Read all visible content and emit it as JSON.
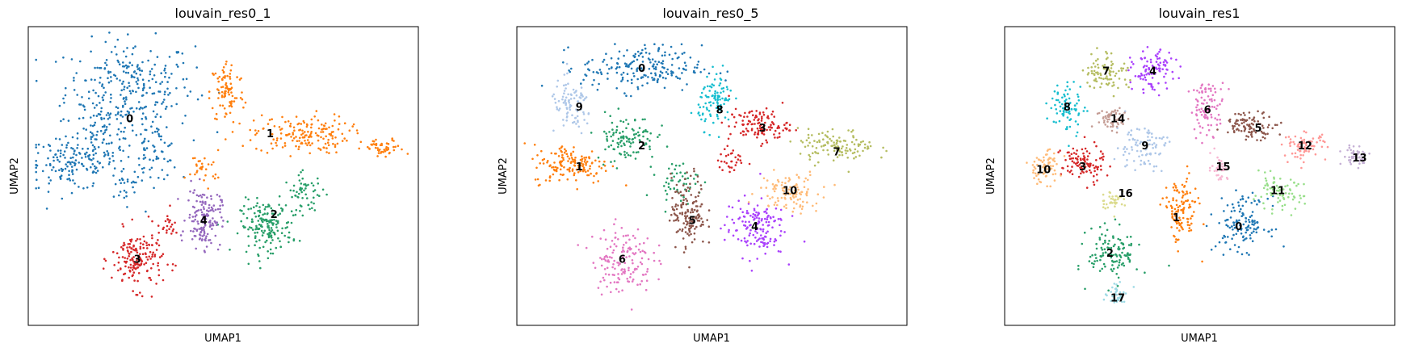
{
  "colors": {
    "cluster_palette": [
      "#1f77b4",
      "#ff7f0e",
      "#279e68",
      "#d62728",
      "#aa40fc",
      "#8c564b",
      "#e377c2",
      "#b5bd61",
      "#17becf",
      "#aec7e8",
      "#ffbb78",
      "#98df8a",
      "#ff9896",
      "#c5b0d5",
      "#c49c94",
      "#f7b6d2",
      "#dbdb8d",
      "#9edae5"
    ]
  },
  "chart_data": [
    {
      "type": "scatter",
      "title": "louvain_res0_1",
      "xlabel": "UMAP1",
      "ylabel": "UMAP2",
      "grid": false,
      "legend": "on data",
      "xlim": [
        0,
        100
      ],
      "ylim": [
        0,
        100
      ],
      "clusters": [
        {
          "name": "0",
          "color": "#1f77b4",
          "label_x": 26,
          "label_y": 69,
          "blobs": [
            [
              26,
              80,
              15,
              14,
              260
            ],
            [
              11,
              54,
              11,
              8,
              150
            ],
            [
              20,
              64,
              7,
              9,
              80
            ],
            [
              32,
              58,
              6,
              9,
              70
            ],
            [
              24,
              47,
              4,
              6,
              25
            ]
          ]
        },
        {
          "name": "1",
          "color": "#ff7f0e",
          "label_x": 62,
          "label_y": 64,
          "blobs": [
            [
              51,
              78,
              4,
              10,
              90
            ],
            [
              70,
              64,
              11,
              6,
              170
            ],
            [
              91,
              59,
              5,
              3,
              50
            ],
            [
              45,
              53,
              4,
              5,
              30
            ]
          ]
        },
        {
          "name": "2",
          "color": "#279e68",
          "label_x": 63,
          "label_y": 37,
          "blobs": [
            [
              61,
              33,
              6,
              8,
              170
            ],
            [
              71,
              44,
              5,
              6,
              60
            ]
          ]
        },
        {
          "name": "3",
          "color": "#d62728",
          "label_x": 28,
          "label_y": 22,
          "blobs": [
            [
              28,
              22,
              6,
              9,
              170
            ],
            [
              36,
              33,
              2,
              5,
              20
            ]
          ]
        },
        {
          "name": "4",
          "color": "#9467bd",
          "label_x": 45,
          "label_y": 35,
          "blobs": [
            [
              45,
              36,
              4,
              9,
              150
            ]
          ]
        }
      ]
    },
    {
      "type": "scatter",
      "title": "louvain_res0_5",
      "xlabel": "UMAP1",
      "ylabel": "UMAP2",
      "grid": false,
      "legend": "on data",
      "xlim": [
        0,
        100
      ],
      "ylim": [
        0,
        100
      ],
      "clusters": [
        {
          "name": "0",
          "color": "#1f77b4",
          "label_x": 32,
          "label_y": 86,
          "blobs": [
            [
              32,
              86,
              14,
              7,
              200
            ]
          ]
        },
        {
          "name": "1",
          "color": "#ff7f0e",
          "label_x": 16,
          "label_y": 53,
          "blobs": [
            [
              14,
              54,
              9,
              6,
              150
            ]
          ]
        },
        {
          "name": "2",
          "color": "#279e68",
          "label_x": 32,
          "label_y": 60,
          "blobs": [
            [
              28,
              63,
              7,
              7,
              110
            ],
            [
              41,
              48,
              5,
              6,
              50
            ]
          ]
        },
        {
          "name": "3",
          "color": "#d62728",
          "label_x": 63,
          "label_y": 66,
          "blobs": [
            [
              62,
              67,
              7,
              5,
              120
            ],
            [
              55,
              55,
              3,
              4,
              30
            ]
          ]
        },
        {
          "name": "4",
          "color": "#aa40fc",
          "label_x": 61,
          "label_y": 33,
          "blobs": [
            [
              61,
              33,
              7,
              9,
              150
            ]
          ]
        },
        {
          "name": "5",
          "color": "#8c564b",
          "label_x": 45,
          "label_y": 35,
          "blobs": [
            [
              44,
              38,
              4,
              11,
              150
            ]
          ]
        },
        {
          "name": "6",
          "color": "#e377c2",
          "label_x": 27,
          "label_y": 22,
          "blobs": [
            [
              27,
              22,
              7,
              10,
              150
            ]
          ]
        },
        {
          "name": "7",
          "color": "#b5bd61",
          "label_x": 82,
          "label_y": 58,
          "blobs": [
            [
              82,
              60,
              9,
              5,
              120
            ]
          ]
        },
        {
          "name": "8",
          "color": "#17becf",
          "label_x": 52,
          "label_y": 72,
          "blobs": [
            [
              51,
              75,
              4,
              8,
              100
            ]
          ]
        },
        {
          "name": "9",
          "color": "#aec7e8",
          "label_x": 16,
          "label_y": 73,
          "blobs": [
            [
              14,
              73,
              5,
              8,
              90
            ]
          ]
        },
        {
          "name": "10",
          "color": "#ffbb78",
          "label_x": 70,
          "label_y": 45,
          "blobs": [
            [
              70,
              45,
              7,
              6,
              110
            ]
          ]
        }
      ]
    },
    {
      "type": "scatter",
      "title": "louvain_res1",
      "xlabel": "UMAP1",
      "ylabel": "UMAP2",
      "grid": false,
      "legend": "on data",
      "xlim": [
        0,
        100
      ],
      "ylim": [
        0,
        100
      ],
      "clusters": [
        {
          "name": "0",
          "color": "#1f77b4",
          "label_x": 60,
          "label_y": 33,
          "blobs": [
            [
              61,
              34,
              6,
              8,
              130
            ]
          ]
        },
        {
          "name": "1",
          "color": "#ff7f0e",
          "label_x": 44,
          "label_y": 36,
          "blobs": [
            [
              45,
              38,
              4,
              10,
              120
            ]
          ]
        },
        {
          "name": "2",
          "color": "#279e68",
          "label_x": 27,
          "label_y": 24,
          "blobs": [
            [
              28,
              24,
              6,
              8,
              120
            ]
          ]
        },
        {
          "name": "3",
          "color": "#d62728",
          "label_x": 20,
          "label_y": 53,
          "blobs": [
            [
              20,
              54,
              5,
              6,
              100
            ]
          ]
        },
        {
          "name": "4",
          "color": "#aa40fc",
          "label_x": 38,
          "label_y": 85,
          "blobs": [
            [
              38,
              85,
              5,
              6,
              100
            ]
          ]
        },
        {
          "name": "5",
          "color": "#8c564b",
          "label_x": 65,
          "label_y": 66,
          "blobs": [
            [
              63,
              67,
              6,
              4,
              100
            ]
          ]
        },
        {
          "name": "6",
          "color": "#e377c2",
          "label_x": 52,
          "label_y": 72,
          "blobs": [
            [
              52,
              73,
              4,
              8,
              90
            ]
          ]
        },
        {
          "name": "7",
          "color": "#b5bd61",
          "label_x": 26,
          "label_y": 85,
          "blobs": [
            [
              26,
              85,
              5,
              6,
              90
            ]
          ]
        },
        {
          "name": "8",
          "color": "#17becf",
          "label_x": 16,
          "label_y": 73,
          "blobs": [
            [
              16,
              73,
              4,
              8,
              80
            ]
          ]
        },
        {
          "name": "9",
          "color": "#aec7e8",
          "label_x": 36,
          "label_y": 60,
          "blobs": [
            [
              35,
              60,
              6,
              7,
              90
            ]
          ]
        },
        {
          "name": "10",
          "color": "#ffbb78",
          "label_x": 10,
          "label_y": 52,
          "blobs": [
            [
              10,
              53,
              4,
              5,
              70
            ]
          ]
        },
        {
          "name": "11",
          "color": "#98df8a",
          "label_x": 70,
          "label_y": 45,
          "blobs": [
            [
              70,
              44,
              6,
              5,
              80
            ]
          ]
        },
        {
          "name": "12",
          "color": "#ff9896",
          "label_x": 77,
          "label_y": 60,
          "blobs": [
            [
              77,
              60,
              5,
              4,
              70
            ]
          ]
        },
        {
          "name": "13",
          "color": "#c5b0d5",
          "label_x": 91,
          "label_y": 56,
          "blobs": [
            [
              90,
              57,
              3,
              3,
              50
            ]
          ]
        },
        {
          "name": "14",
          "color": "#c49c94",
          "label_x": 29,
          "label_y": 69,
          "blobs": [
            [
              28,
              69,
              4,
              4,
              60
            ]
          ]
        },
        {
          "name": "15",
          "color": "#f7b6d2",
          "label_x": 56,
          "label_y": 53,
          "blobs": [
            [
              55,
              53,
              2,
              4,
              40
            ]
          ]
        },
        {
          "name": "16",
          "color": "#dbdb8d",
          "label_x": 31,
          "label_y": 44,
          "blobs": [
            [
              28,
              42,
              3,
              3,
              40
            ]
          ]
        },
        {
          "name": "17",
          "color": "#9edae5",
          "label_x": 29,
          "label_y": 9,
          "blobs": [
            [
              29,
              10,
              3,
              3,
              40
            ]
          ]
        }
      ]
    }
  ]
}
